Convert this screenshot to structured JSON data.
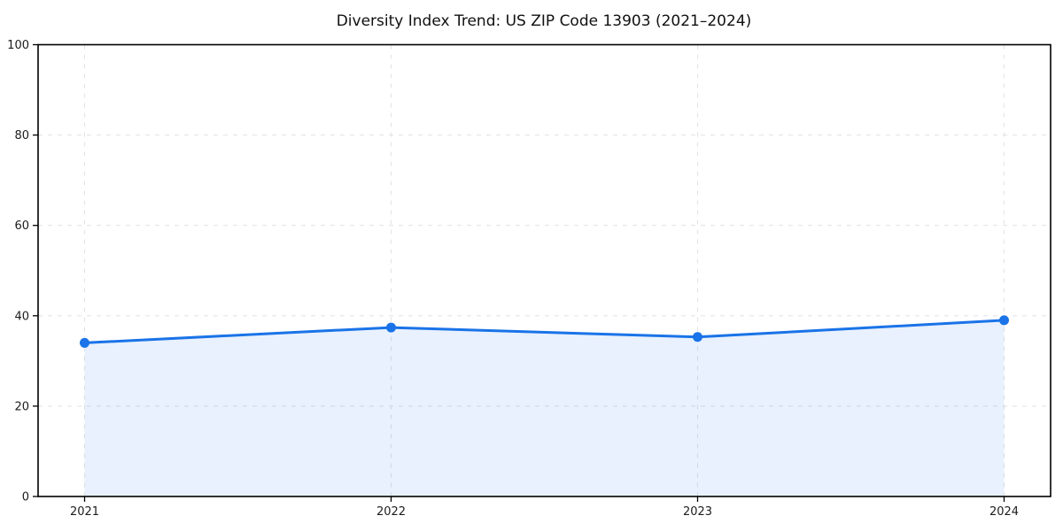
{
  "chart_data": {
    "type": "line",
    "title": "Diversity Index Trend: US ZIP Code 13903 (2021–2024)",
    "x": [
      "2021",
      "2022",
      "2023",
      "2024"
    ],
    "series": [
      {
        "name": "Diversity Index",
        "values": [
          34.0,
          37.4,
          35.3,
          39.0
        ],
        "marker": "circle",
        "fill_below": true
      }
    ],
    "xlabel": "",
    "ylabel": "",
    "ylim": [
      0,
      100
    ],
    "yticks": [
      0,
      20,
      40,
      60,
      80,
      100
    ],
    "xtick_labels": [
      "2021",
      "2022",
      "2023",
      "2024"
    ],
    "grid": {
      "visible": true,
      "style": "dashed",
      "axes": "both"
    },
    "legend_position": "none",
    "colors": {
      "line": "#1a73e8",
      "marker": "#1a73e8",
      "area_fill": "rgba(26,115,232,0.10)",
      "grid": "#e4e4e4",
      "frame": "#000000",
      "tick_label": "#1c1c1c",
      "title": "#111111",
      "background": "#ffffff"
    }
  }
}
